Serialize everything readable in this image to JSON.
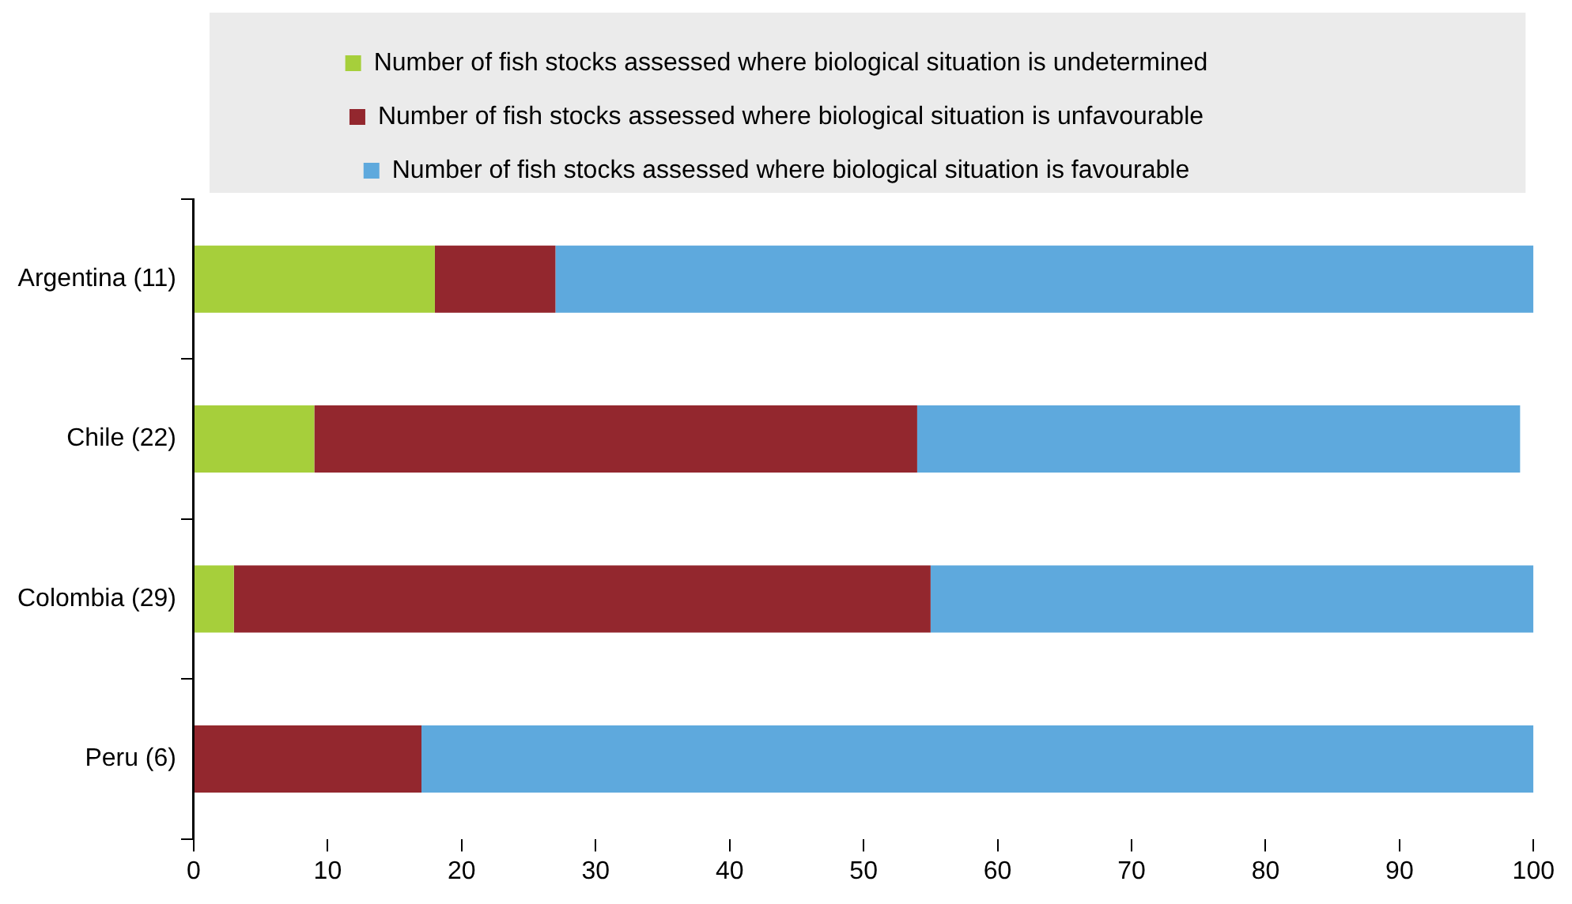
{
  "chart_data": {
    "type": "bar",
    "orientation": "horizontal",
    "stacked": true,
    "categories": [
      "Argentina (11)",
      "Chile (22)",
      "Colombia (29)",
      "Peru (6)"
    ],
    "series": [
      {
        "name": "Number of fish stocks assessed where biological situation is undetermined",
        "color": "#a6cf3b",
        "values": [
          18,
          9,
          3,
          0
        ]
      },
      {
        "name": "Number of fish stocks assessed where biological situation is unfavourable",
        "color": "#93272e",
        "values": [
          9,
          45,
          52,
          17
        ]
      },
      {
        "name": "Number of fish stocks assessed where biological situation is favourable",
        "color": "#5ea9dd",
        "values": [
          73,
          45,
          45,
          83
        ]
      }
    ],
    "xlim": [
      0,
      100
    ],
    "xticks": [
      0,
      10,
      20,
      30,
      40,
      50,
      60,
      70,
      80,
      90,
      100
    ],
    "grid": false,
    "legend": "top"
  }
}
